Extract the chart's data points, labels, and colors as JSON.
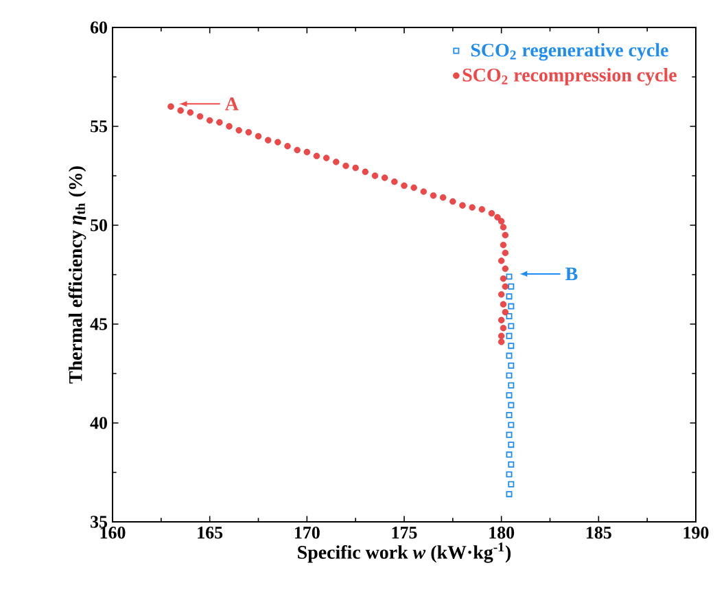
{
  "chart_data": {
    "type": "scatter",
    "xlabel": "Specific work *w* (kW·kg$^{-1}$)",
    "ylabel": "Thermal efficiency *η*$_{th}$ (%)",
    "xlim": [
      160,
      190
    ],
    "xticks": [
      160,
      165,
      170,
      175,
      180,
      185,
      190
    ],
    "ylim": [
      35,
      60
    ],
    "yticks": [
      35,
      40,
      45,
      50,
      55,
      60
    ],
    "legend": "top right",
    "grid": false,
    "series": [
      {
        "name": "SCO$_{2}$ regenerative cycle",
        "color": "#1e8cf0",
        "marker": "square",
        "x": [
          180.4,
          180.5,
          180.4,
          180.5,
          180.4,
          180.5,
          180.4,
          180.5,
          180.4,
          180.5,
          180.4,
          180.5,
          180.4,
          180.5,
          180.4,
          180.5,
          180.4,
          180.5,
          180.4,
          180.5,
          180.4,
          180.5,
          180.4
        ],
        "values": [
          47.4,
          46.9,
          46.4,
          45.9,
          45.4,
          44.9,
          44.4,
          43.9,
          43.4,
          42.9,
          42.4,
          41.9,
          41.4,
          40.9,
          40.4,
          39.9,
          39.4,
          38.9,
          38.4,
          37.9,
          37.4,
          36.9,
          36.4
        ]
      },
      {
        "name": "SCO$_{2}$ recompression cycle",
        "color": "#f04848",
        "marker": "circle",
        "x": [
          163,
          163.5,
          164,
          164.5,
          165,
          165.5,
          166,
          166.5,
          167,
          167.5,
          168,
          168.5,
          169,
          169.5,
          170,
          170.5,
          171,
          171.5,
          172,
          172.5,
          173,
          173.5,
          174,
          174.5,
          175,
          175.5,
          176,
          176.5,
          177,
          177.5,
          178,
          178.5,
          179,
          179.5,
          179.8,
          180.0,
          180.1,
          180.2,
          180.1,
          180.2,
          180.0,
          180.2,
          180.1,
          180.2,
          180.0,
          180.1,
          180.2,
          180.0,
          180.1,
          180.0,
          180.0
        ],
        "values": [
          56.0,
          55.8,
          55.7,
          55.5,
          55.3,
          55.2,
          55.0,
          54.8,
          54.7,
          54.5,
          54.3,
          54.2,
          54.0,
          53.8,
          53.7,
          53.5,
          53.4,
          53.2,
          53.0,
          52.9,
          52.7,
          52.5,
          52.4,
          52.2,
          52.0,
          51.9,
          51.7,
          51.5,
          51.4,
          51.2,
          51.0,
          50.9,
          50.8,
          50.6,
          50.4,
          50.2,
          49.9,
          49.5,
          49.0,
          48.6,
          48.2,
          47.8,
          47.3,
          46.9,
          46.5,
          46.0,
          45.6,
          45.2,
          44.8,
          44.4,
          44.1
        ]
      }
    ],
    "annotations": [
      {
        "text": "A",
        "x": 163,
        "y": 56
      },
      {
        "text": "B",
        "x": 180.5,
        "y": 47.4
      }
    ]
  }
}
